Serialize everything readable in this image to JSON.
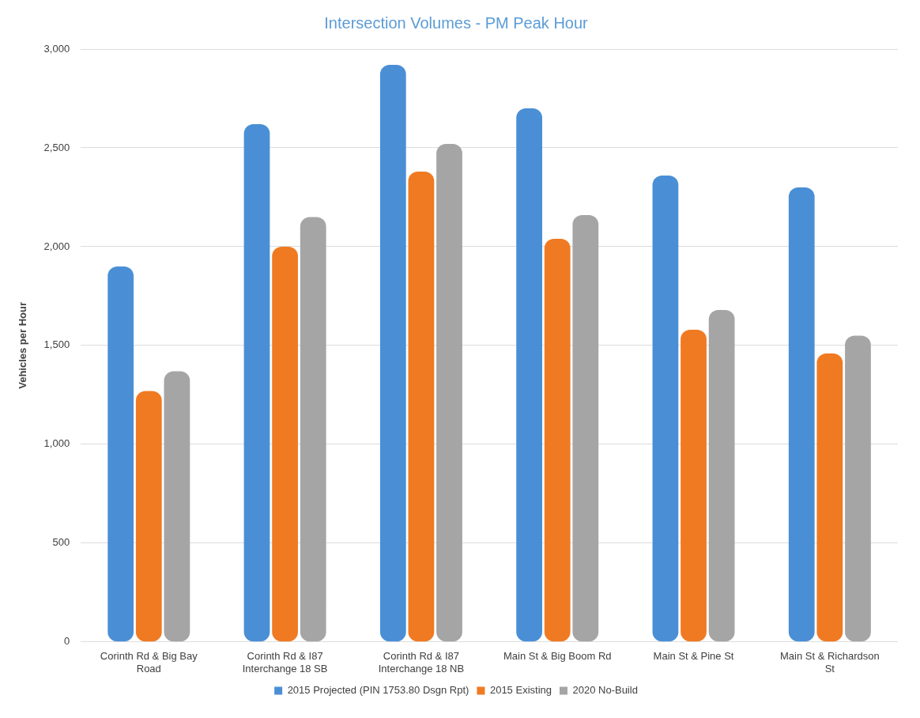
{
  "chart_data": {
    "type": "bar",
    "title": "Intersection Volumes - PM Peak Hour",
    "ylabel": "Vehicles per Hour",
    "categories": [
      "Corinth Rd & Big Bay Road",
      "Corinth Rd & I87 Interchange 18 SB",
      "Corinth Rd & I87 Interchange 18 NB",
      "Main St & Big Boom Rd",
      "Main St & Pine St",
      "Main St & Richardson St"
    ],
    "series": [
      {
        "name": "2015 Projected (PIN 1753.80 Dsgn Rpt)",
        "color": "#4a8fd6",
        "values": [
          1900,
          2620,
          2920,
          2700,
          2360,
          2300
        ]
      },
      {
        "name": "2015 Existing",
        "color": "#f07a22",
        "values": [
          1270,
          2000,
          2380,
          2040,
          1580,
          1460
        ]
      },
      {
        "name": "2020 No-Build",
        "color": "#a5a5a5",
        "values": [
          1370,
          2150,
          2520,
          2160,
          1680,
          1550
        ]
      }
    ],
    "ylim": [
      0,
      3000
    ],
    "yticks": [
      0,
      500,
      {
        "value": 1000,
        "label": "1,000"
      },
      {
        "value": 1500,
        "label": "1,500"
      },
      {
        "value": 2000,
        "label": "2,000"
      },
      {
        "value": 2500,
        "label": "2,500"
      },
      {
        "value": 3000,
        "label": "3,000"
      }
    ],
    "grid": "y",
    "legend": "bottom"
  }
}
